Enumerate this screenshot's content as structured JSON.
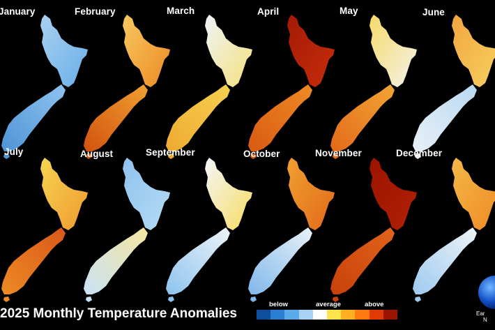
{
  "title": "2025 Monthly Temperature Anomalies",
  "legend": {
    "below": "below",
    "average": "average",
    "above": "above",
    "colors": [
      "#0d4f9c",
      "#2a7fd4",
      "#5aa9ea",
      "#a8d2f4",
      "#ffffff",
      "#ffe34d",
      "#ffb020",
      "#ff7a10",
      "#e03a05",
      "#9a1400"
    ]
  },
  "credit": {
    "line1": "Ear",
    "line2": "N"
  },
  "months": [
    {
      "name": "January",
      "north": [
        "#a9d1f1",
        "#6aaee8"
      ],
      "south": [
        "#4f93d6",
        "#8ec3ee"
      ],
      "anomaly": "below"
    },
    {
      "name": "February",
      "north": [
        "#f7c860",
        "#ee8a24"
      ],
      "south": [
        "#d2520f",
        "#f0a030"
      ],
      "anomaly": "above"
    },
    {
      "name": "March",
      "north": [
        "#eef4f8",
        "#f5e07a"
      ],
      "south": [
        "#eeaa30",
        "#f6d050"
      ],
      "anomaly": "above"
    },
    {
      "name": "April",
      "north": [
        "#a31a06",
        "#c72d0a"
      ],
      "south": [
        "#d85a12",
        "#ee8a24"
      ],
      "anomaly": "well above"
    },
    {
      "name": "May",
      "north": [
        "#f6da6a",
        "#f4f2ea"
      ],
      "south": [
        "#e2691a",
        "#f2a535"
      ],
      "anomaly": "above"
    },
    {
      "name": "June",
      "north": [
        "#f2a540",
        "#f6d060"
      ],
      "south": [
        "#e8f0f7",
        "#b9d9f2"
      ],
      "anomaly": "mixed"
    },
    {
      "name": "July",
      "north": [
        "#f6d450",
        "#ef9a30"
      ],
      "south": [
        "#ee8a24",
        "#d8581a"
      ],
      "anomaly": "above"
    },
    {
      "name": "August",
      "north": [
        "#8ec3ee",
        "#b6dbf4"
      ],
      "south": [
        "#c8e2f6",
        "#f7e6a0"
      ],
      "anomaly": "below"
    },
    {
      "name": "September",
      "north": [
        "#f4f6f8",
        "#f7dc60"
      ],
      "south": [
        "#8ec3ee",
        "#eef4f8"
      ],
      "anomaly": "mixed"
    },
    {
      "name": "October",
      "north": [
        "#f0a030",
        "#e2691a"
      ],
      "south": [
        "#7fb8ea",
        "#eaf2f8"
      ],
      "anomaly": "mixed"
    },
    {
      "name": "November",
      "north": [
        "#9a1400",
        "#b31f05"
      ],
      "south": [
        "#c8400a",
        "#e2641a"
      ],
      "anomaly": "well above"
    },
    {
      "name": "December",
      "north": [
        "#f4b848",
        "#ee8a24"
      ],
      "south": [
        "#9ecaef",
        "#eef4f8"
      ],
      "anomaly": "mixed"
    }
  ]
}
